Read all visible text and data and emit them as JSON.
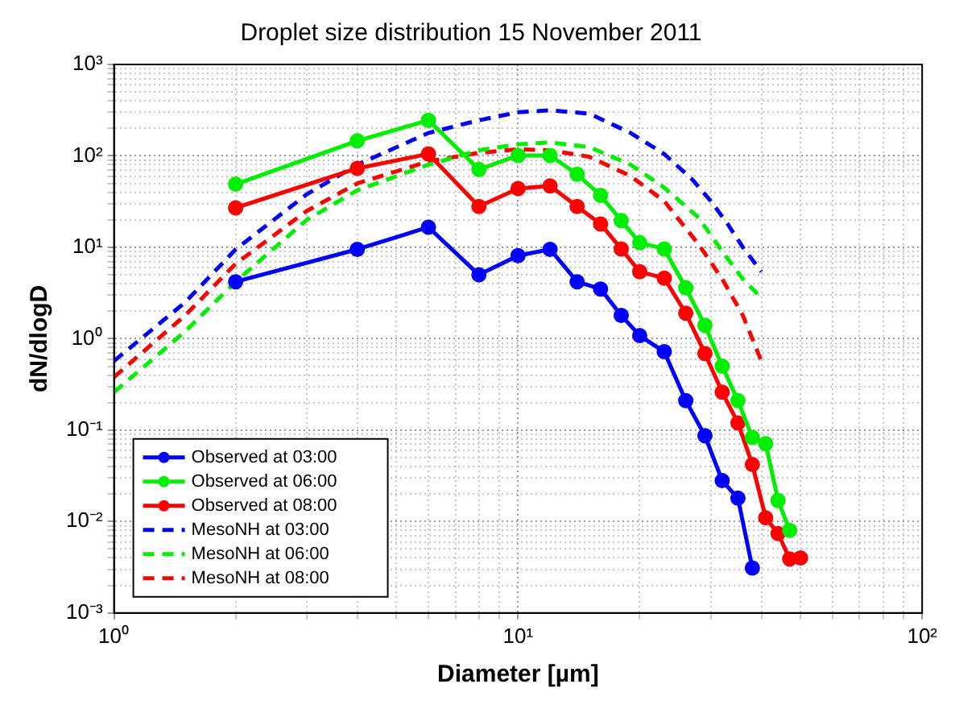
{
  "chart_data": {
    "type": "line",
    "title": "Droplet size distribution 15 November 2011",
    "xlabel": "Diameter [µm]",
    "ylabel": "dN/dlogD",
    "log": "xy",
    "grid": true,
    "legend": "bottom left",
    "xlim": [
      1,
      100
    ],
    "ylim": [
      0.001,
      1000
    ],
    "xticks": [
      {
        "value": 1,
        "label": "10⁰"
      },
      {
        "value": 2,
        "label": null
      },
      {
        "value": 3,
        "label": null
      },
      {
        "value": 4,
        "label": null
      },
      {
        "value": 5,
        "label": null
      },
      {
        "value": 6,
        "label": null
      },
      {
        "value": 7,
        "label": null
      },
      {
        "value": 8,
        "label": null
      },
      {
        "value": 9,
        "label": null
      },
      {
        "value": 10,
        "label": "10¹"
      },
      {
        "value": 20,
        "label": null
      },
      {
        "value": 30,
        "label": null
      },
      {
        "value": 40,
        "label": null
      },
      {
        "value": 50,
        "label": null
      },
      {
        "value": 60,
        "label": null
      },
      {
        "value": 70,
        "label": null
      },
      {
        "value": 80,
        "label": null
      },
      {
        "value": 90,
        "label": null
      },
      {
        "value": 100,
        "label": "10²"
      }
    ],
    "yticks": [
      {
        "value": 0.001,
        "label": "10⁻³"
      },
      {
        "value": 0.002,
        "label": null
      },
      {
        "value": 0.003,
        "label": null
      },
      {
        "value": 0.004,
        "label": null
      },
      {
        "value": 0.005,
        "label": null
      },
      {
        "value": 0.006,
        "label": null
      },
      {
        "value": 0.007,
        "label": null
      },
      {
        "value": 0.008,
        "label": null
      },
      {
        "value": 0.009,
        "label": null
      },
      {
        "value": 0.01,
        "label": "10⁻²"
      },
      {
        "value": 0.02,
        "label": null
      },
      {
        "value": 0.03,
        "label": null
      },
      {
        "value": 0.04,
        "label": null
      },
      {
        "value": 0.05,
        "label": null
      },
      {
        "value": 0.06,
        "label": null
      },
      {
        "value": 0.07,
        "label": null
      },
      {
        "value": 0.08,
        "label": null
      },
      {
        "value": 0.09,
        "label": null
      },
      {
        "value": 0.1,
        "label": "10⁻¹"
      },
      {
        "value": 0.2,
        "label": null
      },
      {
        "value": 0.3,
        "label": null
      },
      {
        "value": 0.4,
        "label": null
      },
      {
        "value": 0.5,
        "label": null
      },
      {
        "value": 0.6,
        "label": null
      },
      {
        "value": 0.7,
        "label": null
      },
      {
        "value": 0.8,
        "label": null
      },
      {
        "value": 0.9,
        "label": null
      },
      {
        "value": 1,
        "label": "10⁰"
      },
      {
        "value": 2,
        "label": null
      },
      {
        "value": 3,
        "label": null
      },
      {
        "value": 4,
        "label": null
      },
      {
        "value": 5,
        "label": null
      },
      {
        "value": 6,
        "label": null
      },
      {
        "value": 7,
        "label": null
      },
      {
        "value": 8,
        "label": null
      },
      {
        "value": 9,
        "label": null
      },
      {
        "value": 10,
        "label": "10¹"
      },
      {
        "value": 20,
        "label": null
      },
      {
        "value": 30,
        "label": null
      },
      {
        "value": 40,
        "label": null
      },
      {
        "value": 50,
        "label": null
      },
      {
        "value": 60,
        "label": null
      },
      {
        "value": 70,
        "label": null
      },
      {
        "value": 80,
        "label": null
      },
      {
        "value": 90,
        "label": null
      },
      {
        "value": 100,
        "label": "10²"
      },
      {
        "value": 200,
        "label": null
      },
      {
        "value": 300,
        "label": null
      },
      {
        "value": 400,
        "label": null
      },
      {
        "value": 500,
        "label": null
      },
      {
        "value": 600,
        "label": null
      },
      {
        "value": 700,
        "label": null
      },
      {
        "value": 800,
        "label": null
      },
      {
        "value": 900,
        "label": null
      },
      {
        "value": 1000,
        "label": "10³"
      }
    ],
    "series": [
      {
        "name": "Observed at 03:00",
        "color": "#0000ff",
        "marker": "circle",
        "line_style": "solid",
        "x": [
          2,
          4,
          6,
          8,
          10,
          12,
          14,
          16,
          18,
          20,
          23,
          26,
          29,
          32,
          35,
          38
        ],
        "values": [
          4.2,
          9.5,
          16.6,
          5,
          8.1,
          9.5,
          4.2,
          3.5,
          1.8,
          1.08,
          0.72,
          0.21,
          0.087,
          0.028,
          0.018,
          0.0031
        ]
      },
      {
        "name": "Observed at 06:00",
        "color": "#00ee00",
        "marker": "circle",
        "line_style": "solid",
        "x": [
          2,
          4,
          6,
          8,
          10,
          12,
          14,
          16,
          18,
          20,
          23,
          26,
          29,
          32,
          35,
          38,
          41,
          44,
          47
        ],
        "values": [
          49,
          146,
          245,
          71,
          101,
          101,
          63,
          37,
          19.6,
          11.2,
          9.6,
          3.6,
          1.4,
          0.5,
          0.21,
          0.083,
          0.071,
          0.017,
          0.008
        ]
      },
      {
        "name": "Observed at 08:00",
        "color": "#ff0000",
        "marker": "circle",
        "line_style": "solid",
        "x": [
          2,
          4,
          6,
          8,
          10,
          12,
          14,
          16,
          18,
          20,
          23,
          26,
          29,
          32,
          35,
          38,
          41,
          44,
          47,
          50
        ],
        "values": [
          27,
          73,
          105,
          28,
          44,
          47,
          28,
          18,
          9.6,
          5.4,
          4.6,
          1.9,
          0.69,
          0.26,
          0.12,
          0.042,
          0.011,
          0.0074,
          0.0039,
          0.004
        ]
      },
      {
        "name": "MesoNH at 03:00",
        "color": "#0000ff",
        "marker": "none",
        "line_style": "dashed",
        "x": [
          1,
          1.5,
          2,
          3,
          4,
          6,
          8,
          10,
          12,
          15,
          19,
          23,
          27,
          30,
          33,
          36,
          40
        ],
        "values": [
          0.57,
          2.5,
          9.5,
          38,
          80,
          178,
          245,
          300,
          315,
          290,
          178,
          105,
          55,
          32,
          18,
          10,
          5.4
        ]
      },
      {
        "name": "MesoNH at 06:00",
        "color": "#00ee00",
        "marker": "none",
        "line_style": "dashed",
        "x": [
          1,
          1.5,
          2,
          3,
          4,
          6,
          8,
          10,
          12,
          15,
          19,
          23,
          28,
          32,
          36,
          40
        ],
        "values": [
          0.26,
          1.2,
          4.2,
          20,
          42,
          80,
          115,
          134,
          140,
          125,
          80,
          45,
          21,
          9,
          4.5,
          2.8
        ]
      },
      {
        "name": "MesoNH at 08:00",
        "color": "#ff0000",
        "marker": "none",
        "line_style": "dashed",
        "x": [
          1,
          1.5,
          2,
          3,
          4,
          6,
          8,
          10,
          12,
          15,
          19,
          23,
          28,
          32,
          36,
          40
        ],
        "values": [
          0.38,
          1.8,
          6.6,
          25,
          50,
          87,
          108,
          118,
          115,
          98,
          60,
          32,
          10.7,
          4.5,
          1.8,
          0.57
        ]
      }
    ]
  }
}
